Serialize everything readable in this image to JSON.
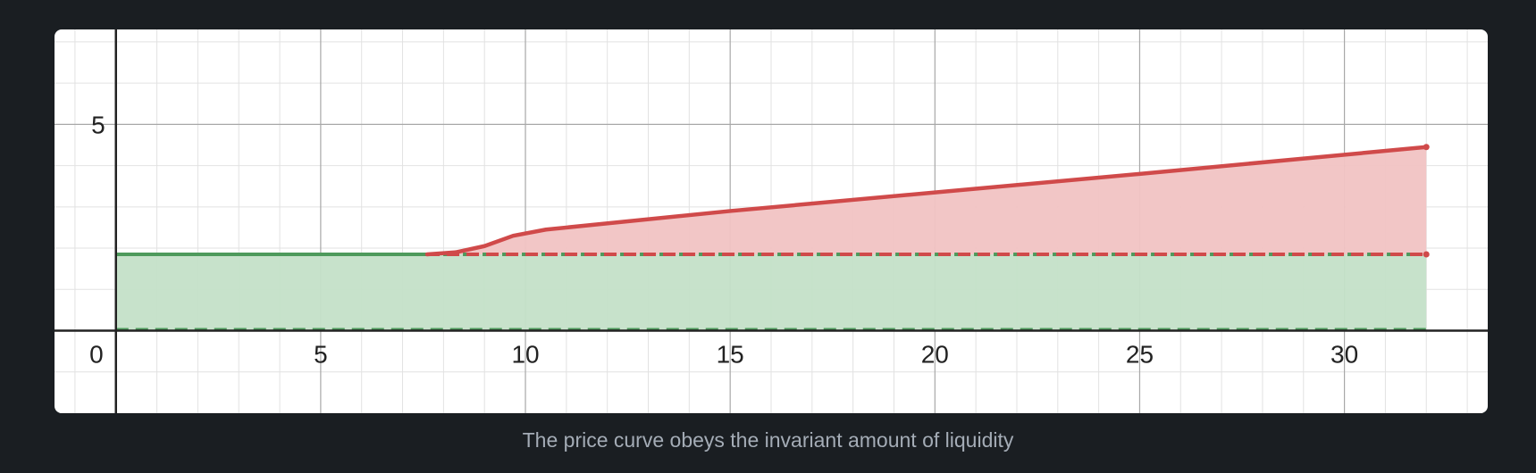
{
  "caption": "The price curve obeys the invariant amount of liquidity",
  "chart_data": {
    "type": "area",
    "title": "",
    "xlabel": "",
    "ylabel": "",
    "xlim": [
      -1.5,
      33.5
    ],
    "ylim": [
      -2.0,
      7.3
    ],
    "x_ticks": [
      0,
      5,
      10,
      15,
      20,
      25,
      30
    ],
    "y_ticks": [
      5
    ],
    "x_tick_labels": [
      "0",
      "5",
      "10",
      "15",
      "20",
      "25",
      "30"
    ],
    "y_tick_labels": [
      "5"
    ],
    "grid": true,
    "colors": {
      "price_curve": "#d04a4a",
      "price_fill": "#f1c3c3",
      "liquidity_line": "#4e9a5c",
      "liquidity_fill": "#c4e0c8",
      "axis": "#222222",
      "major_grid": "#a8a8a8",
      "minor_grid": "#e2e2e2"
    },
    "series": [
      {
        "kind": "liquidity_band",
        "x": [
          0,
          32
        ],
        "y_low": 0,
        "y_high": 1.85,
        "style": "solid-top-dashed-bottom"
      },
      {
        "kind": "price_curve",
        "points": [
          [
            7.6,
            1.85
          ],
          [
            8.3,
            1.9
          ],
          [
            9.0,
            2.05
          ],
          [
            9.7,
            2.3
          ],
          [
            10.5,
            2.45
          ],
          [
            15,
            2.9
          ],
          [
            20,
            3.35
          ],
          [
            25,
            3.8
          ],
          [
            32,
            4.45
          ]
        ]
      },
      {
        "kind": "price_baseline",
        "x": [
          7.6,
          32
        ],
        "y": 1.85,
        "style": "dashed"
      }
    ]
  }
}
